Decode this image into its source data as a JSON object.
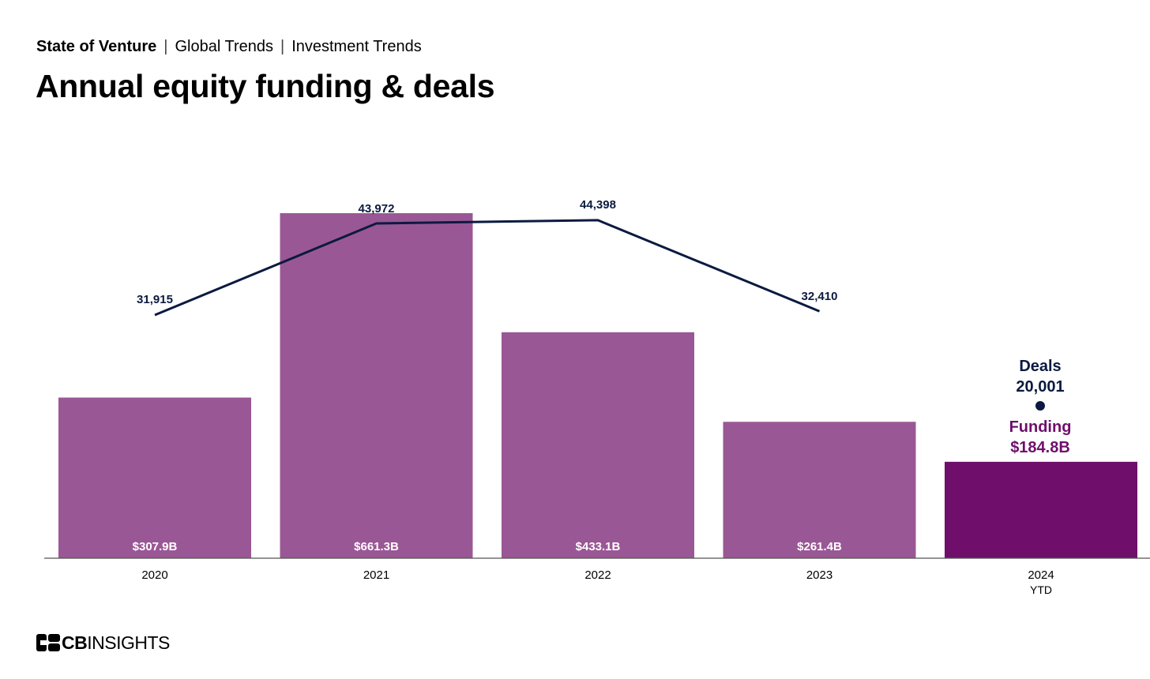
{
  "breadcrumb": {
    "items": [
      "State of Venture",
      "Global Trends",
      "Investment Trends"
    ]
  },
  "title": "Annual equity funding & deals",
  "logo": {
    "part1": "CB",
    "part2": "INSIGHTS"
  },
  "colors": {
    "bar": "#9a5795",
    "bar_highlight": "#6f0f6b",
    "line": "#0b1a40",
    "funding_label": "#6f0f6b",
    "axis": "#555555"
  },
  "chart_data": {
    "type": "bar",
    "categories": [
      "2020",
      "2021",
      "2022",
      "2023",
      "2024"
    ],
    "category_sublabels": [
      "",
      "",
      "",
      "",
      "YTD"
    ],
    "series": [
      {
        "values": [
          307.9,
          661.3,
          433.1,
          261.4,
          184.8
        ],
        "value_labels": [
          "$307.9B",
          "$661.3B",
          "$433.1B",
          "$261.4B",
          "$184.8B"
        ]
      },
      {
        "type": "line",
        "values": [
          31915,
          43972,
          44398,
          32410,
          20001
        ],
        "value_labels": [
          "31,915",
          "43,972",
          "44,398",
          "32,410",
          "20,001"
        ]
      }
    ],
    "callout": {
      "deals_label": "Deals",
      "deals_value": "20,001",
      "funding_label": "Funding",
      "funding_value": "$184.8B"
    },
    "grid": false,
    "legend": "none"
  }
}
